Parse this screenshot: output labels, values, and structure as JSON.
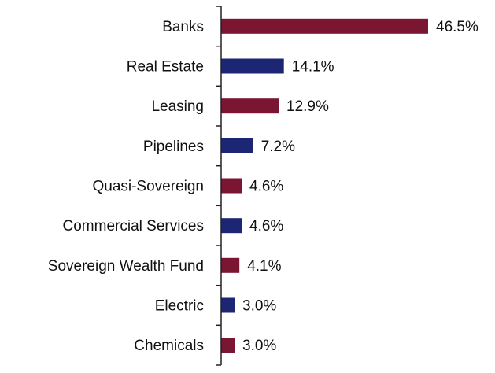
{
  "chart_data": {
    "type": "bar",
    "orientation": "horizontal",
    "categories": [
      "Banks",
      "Real Estate",
      "Leasing",
      "Pipelines",
      "Quasi-Sovereign",
      "Commercial Services",
      "Sovereign Wealth Fund",
      "Electric",
      "Chemicals"
    ],
    "values": [
      46.5,
      14.1,
      12.9,
      7.2,
      4.6,
      4.6,
      4.1,
      3.0,
      3.0
    ],
    "data_labels": [
      "46.5%",
      "14.1%",
      "12.9%",
      "7.2%",
      "4.6%",
      "4.6%",
      "4.1%",
      "3.0%",
      "3.0%"
    ],
    "bar_colors": [
      "#7a1632",
      "#1c2672",
      "#7a1632",
      "#1c2672",
      "#7a1632",
      "#1c2672",
      "#7a1632",
      "#1c2672",
      "#7a1632"
    ],
    "value_axis_range": [
      0,
      46.5
    ],
    "value_axis_visible": false,
    "grid": false,
    "legend": "none",
    "title": "",
    "xlabel": "",
    "ylabel": ""
  }
}
